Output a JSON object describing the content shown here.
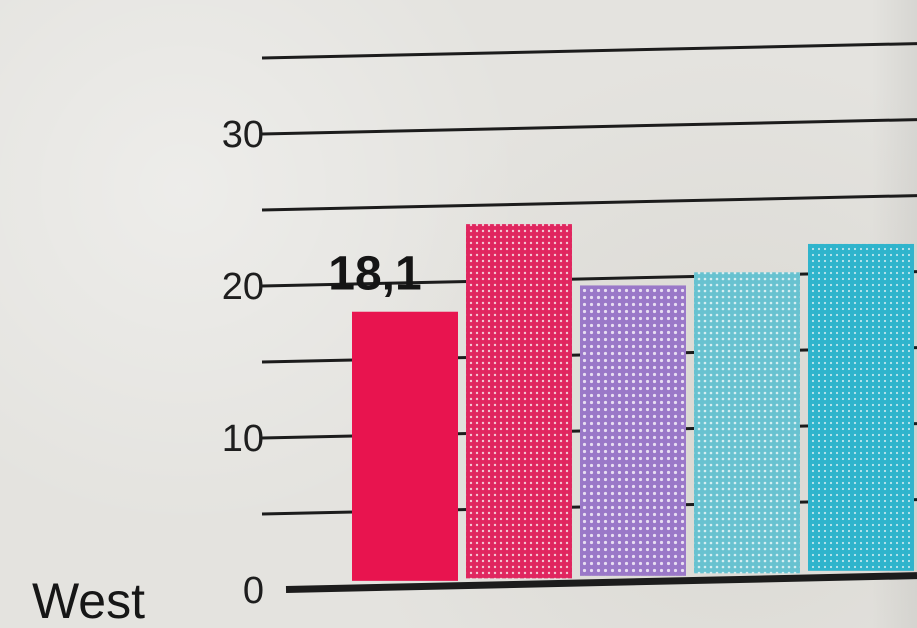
{
  "chart_data": {
    "type": "bar",
    "region_label": "West",
    "categories": [
      "",
      "",
      "",
      "",
      ""
    ],
    "values": [
      18.1,
      23.7,
      19.5,
      20.2,
      21.9
    ],
    "value_labels": [
      "18,1",
      "",
      "",
      "",
      ""
    ],
    "bar_colors": [
      "#e8144f",
      "#e0265f",
      "#9a78c8",
      "#68c2d0",
      "#2fb4cc"
    ],
    "bar_patterns": [
      "solid",
      "halftone",
      "dotted",
      "halftone",
      "halftone"
    ],
    "ylim": [
      0,
      35
    ],
    "y_ticks": [
      0,
      5,
      10,
      15,
      20,
      25,
      30,
      35
    ],
    "y_tick_labels": {
      "0": "0",
      "10": "10",
      "20": "20",
      "30": "30"
    },
    "grid": true,
    "title": "",
    "xlabel": "",
    "ylabel": ""
  }
}
